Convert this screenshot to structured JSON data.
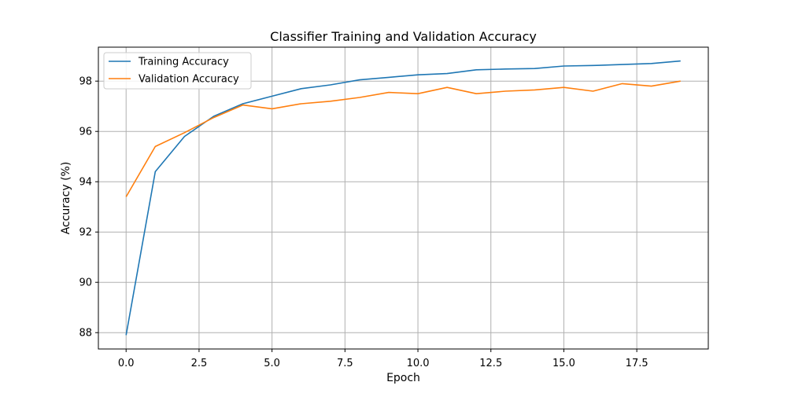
{
  "chart_data": {
    "type": "line",
    "title": "Classifier Training and Validation Accuracy",
    "xlabel": "Epoch",
    "ylabel": "Accuracy (%)",
    "xlim": [
      -0.95,
      19.95
    ],
    "ylim": [
      87.35,
      99.35
    ],
    "xticks": [
      0.0,
      2.5,
      5.0,
      7.5,
      10.0,
      12.5,
      15.0,
      17.5
    ],
    "xtick_labels": [
      "0.0",
      "2.5",
      "5.0",
      "7.5",
      "10.0",
      "12.5",
      "15.0",
      "17.5"
    ],
    "yticks": [
      88,
      90,
      92,
      94,
      96,
      98
    ],
    "ytick_labels": [
      "88",
      "90",
      "92",
      "94",
      "96",
      "98"
    ],
    "grid": true,
    "legend_position": "top-left",
    "x": [
      0,
      1,
      2,
      3,
      4,
      5,
      6,
      7,
      8,
      9,
      10,
      11,
      12,
      13,
      14,
      15,
      16,
      17,
      18,
      19
    ],
    "series": [
      {
        "name": "Training Accuracy",
        "color": "#1f77b4",
        "values": [
          87.9,
          94.4,
          95.8,
          96.6,
          97.1,
          97.4,
          97.7,
          97.85,
          98.05,
          98.15,
          98.25,
          98.3,
          98.45,
          98.48,
          98.5,
          98.6,
          98.62,
          98.66,
          98.7,
          98.8
        ]
      },
      {
        "name": "Validation Accuracy",
        "color": "#ff7f0e",
        "values": [
          93.4,
          95.4,
          95.95,
          96.55,
          97.05,
          96.9,
          97.1,
          97.2,
          97.35,
          97.55,
          97.5,
          97.75,
          97.5,
          97.6,
          97.65,
          97.75,
          97.6,
          97.9,
          97.8,
          98.0
        ]
      }
    ]
  }
}
